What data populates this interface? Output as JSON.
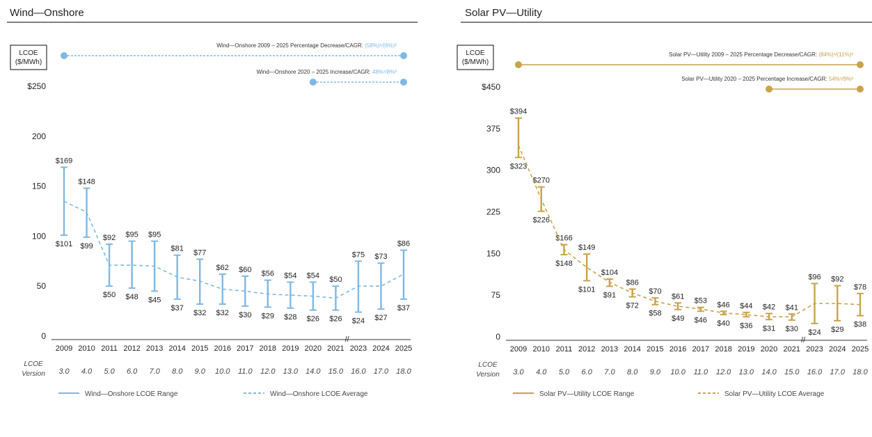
{
  "chart_data": [
    {
      "type": "line",
      "title": "Wind—Onshore",
      "ylabel": "LCOE ($/MWh)",
      "ylim": [
        0,
        250
      ],
      "yticks": [
        "0",
        "50",
        "100",
        "150",
        "200",
        "$250"
      ],
      "categories": [
        "2009",
        "2010",
        "2011",
        "2012",
        "2013",
        "2014",
        "2015",
        "2016",
        "2017",
        "2018",
        "2019",
        "2020",
        "2021",
        "2023",
        "2024",
        "2025"
      ],
      "versions": [
        "3.0",
        "4.0",
        "5.0",
        "6.0",
        "7.0",
        "8.0",
        "9.0",
        "10.0",
        "11.0",
        "12.0",
        "13.0",
        "14.0",
        "15.0",
        "16.0",
        "17.0",
        "18.0"
      ],
      "version_label": [
        "LCOE",
        "Version"
      ],
      "axis_break": "//",
      "high": [
        169,
        148,
        92,
        95,
        95,
        81,
        77,
        62,
        60,
        56,
        54,
        54,
        50,
        75,
        73,
        86
      ],
      "low": [
        101,
        99,
        50,
        48,
        45,
        37,
        32,
        32,
        30,
        29,
        28,
        26,
        26,
        24,
        27,
        37
      ],
      "high_labels": [
        "$169",
        "$148",
        "$92",
        "$95",
        "$95",
        "$81",
        "$77",
        "$62",
        "$60",
        "$56",
        "$54",
        "$54",
        "$50",
        "$75",
        "$73",
        "$86"
      ],
      "low_labels": [
        "$101",
        "$99",
        "$50",
        "$48",
        "$45",
        "$37",
        "$32",
        "$32",
        "$30",
        "$29",
        "$28",
        "$26",
        "$26",
        "$24",
        "$27",
        "$37"
      ],
      "average": [
        135,
        124,
        71,
        71,
        70,
        59,
        55,
        47,
        45,
        42,
        41,
        40,
        38,
        50,
        50,
        62
      ],
      "color": "#7fb8e2",
      "annotations": [
        {
          "text": "Wind—Onshore 2009 – 2025 Percentage Decrease/CAGR:",
          "value": "(58%)¹/(6%)²",
          "from": "2009",
          "to": "2025"
        },
        {
          "text": "Wind—Onshore 2020 – 2025 Increase/CAGR:",
          "value": "48%¹/8%²",
          "from": "2020",
          "to": "2025"
        }
      ],
      "legend": [
        {
          "name": "Wind—Onshore LCOE Range",
          "style": "solid"
        },
        {
          "name": "Wind—Onshore LCOE Average",
          "style": "dashed"
        }
      ]
    },
    {
      "type": "line",
      "title": "Solar PV—Utility",
      "ylabel": "LCOE ($/MWh)",
      "ylim": [
        0,
        450
      ],
      "yticks": [
        "0",
        "75",
        "150",
        "225",
        "300",
        "375",
        "$450"
      ],
      "categories": [
        "2009",
        "2010",
        "2011",
        "2012",
        "2013",
        "2014",
        "2015",
        "2016",
        "2017",
        "2018",
        "2019",
        "2020",
        "2021",
        "2023",
        "2024",
        "2025"
      ],
      "versions": [
        "3.0",
        "4.0",
        "5.0",
        "6.0",
        "7.0",
        "8.0",
        "9.0",
        "10.0",
        "11.0",
        "12.0",
        "13.0",
        "14.0",
        "15.0",
        "16.0",
        "17.0",
        "18.0"
      ],
      "version_label": [
        "LCOE",
        "Version"
      ],
      "axis_break": "//",
      "high": [
        394,
        270,
        166,
        149,
        104,
        86,
        70,
        61,
        53,
        46,
        44,
        42,
        41,
        96,
        92,
        78
      ],
      "low": [
        323,
        226,
        148,
        101,
        91,
        72,
        58,
        49,
        46,
        40,
        36,
        31,
        30,
        24,
        29,
        38
      ],
      "high_labels": [
        "$394",
        "$270",
        "$166",
        "$149",
        "$104",
        "$86",
        "$70",
        "$61",
        "$53",
        "$46",
        "$44",
        "$42",
        "$41",
        "$96",
        "$92",
        "$78"
      ],
      "low_labels": [
        "$323",
        "$226",
        "$148",
        "$101",
        "$91",
        "$72",
        "$58",
        "$49",
        "$46",
        "$40",
        "$36",
        "$31",
        "$30",
        "$24",
        "$29",
        "$38"
      ],
      "average": [
        345,
        248,
        157,
        125,
        98,
        79,
        64,
        55,
        50,
        43,
        40,
        36,
        36,
        60,
        60,
        58
      ],
      "color": "#c9a24a",
      "annotations": [
        {
          "text": "Solar PV—Utility 2009 – 2025 Percentage Decrease/CAGR:",
          "value": "(84%)¹/(11%)²",
          "from": "2009",
          "to": "2025"
        },
        {
          "text": "Solar PV—Utility 2020 – 2025 Percentage Increase/CAGR:",
          "value": "54%¹/9%²",
          "from": "2020",
          "to": "2025"
        }
      ],
      "legend": [
        {
          "name": "Solar PV—Utility LCOE Range",
          "style": "solid"
        },
        {
          "name": "Solar PV—Utility LCOE Average",
          "style": "dashed"
        }
      ]
    }
  ]
}
